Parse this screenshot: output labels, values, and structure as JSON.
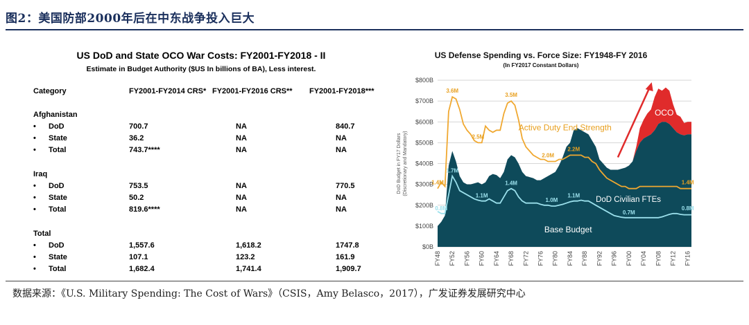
{
  "figure": {
    "title": "图2：美国防部2000年后在中东战争投入巨大",
    "source": "数据来源：《U.S. Military Spending: The Cost of Wars》（CSIS，Amy Belasco，2017），广发证券发展研究中心"
  },
  "table": {
    "title": "US DoD and State OCO War Costs: FY2001-FY2018 - II",
    "subtitle": "Estimate in Budget Authority ($US In billions of BA), Less interest.",
    "headers": [
      "Category",
      "FY2001-FY2014 CRS*",
      "FY2001-FY2016 CRS**",
      "FY2001-FY2018***"
    ],
    "bullet": "•",
    "sections": [
      {
        "name": "Afghanistan",
        "rows": [
          {
            "label": "DoD",
            "values": [
              "700.7",
              "NA",
              "840.7"
            ]
          },
          {
            "label": "State",
            "values": [
              "36.2",
              "NA",
              "NA"
            ]
          },
          {
            "label": "Total",
            "values": [
              "743.7****",
              "NA",
              "NA"
            ]
          }
        ]
      },
      {
        "name": "Iraq",
        "rows": [
          {
            "label": "DoD",
            "values": [
              "753.5",
              "NA",
              "770.5"
            ]
          },
          {
            "label": "State",
            "values": [
              "50.2",
              "NA",
              "NA"
            ]
          },
          {
            "label": "Total",
            "values": [
              "819.6****",
              "NA",
              "NA"
            ]
          }
        ]
      },
      {
        "name": "Total",
        "rows": [
          {
            "label": "DoD",
            "values": [
              "1,557.6",
              "1,618.2",
              "1747.8"
            ]
          },
          {
            "label": "State",
            "values": [
              "107.1",
              "123.2",
              "161.9"
            ]
          },
          {
            "label": "Total",
            "values": [
              "1,682.4",
              "1,741.4",
              "1,909.7"
            ]
          }
        ]
      }
    ]
  },
  "chart_data": {
    "type": "area",
    "title": "US Defense Spending vs. Force Size: FY1948-FY 2016",
    "subtitle": "(In FY2017 Constant Dollars)",
    "ylabel_line1": "DoD Budget in FY17 Dollars",
    "ylabel_line2": "(Discretionary and Mandatory)",
    "ylim": [
      0,
      800
    ],
    "yticks": [
      0,
      100,
      200,
      300,
      400,
      500,
      600,
      700,
      800
    ],
    "ytick_labels": [
      "$0B",
      "$100B",
      "$200B",
      "$300B",
      "$400B",
      "$500B",
      "$600B",
      "$700B",
      "$800B"
    ],
    "xlim": [
      1948,
      2017
    ],
    "xticks": [
      1948,
      1952,
      1956,
      1960,
      1964,
      1968,
      1972,
      1976,
      1980,
      1984,
      1988,
      1992,
      1996,
      2000,
      2004,
      2008,
      2012,
      2016
    ],
    "xtick_labels": [
      "FY48",
      "FY52",
      "FY56",
      "FY60",
      "FY64",
      "FY68",
      "FY72",
      "FY76",
      "FY80",
      "FY84",
      "FY88",
      "FY92",
      "FY96",
      "FY00",
      "FY04",
      "FY08",
      "FY12",
      "FY16"
    ],
    "colors": {
      "base": "#0e4a5a",
      "oco": "#e02b2b",
      "active": "#f0a830",
      "civilian": "#9be0ec",
      "grid": "#c8c8c8",
      "annotation_text": "#e8a020",
      "active_label": "#e8a020",
      "arrow": "#e02b2b"
    },
    "series": [
      {
        "name": "Base Budget",
        "unit": "$B",
        "x": [
          1948,
          1949,
          1950,
          1951,
          1952,
          1953,
          1954,
          1955,
          1956,
          1957,
          1958,
          1959,
          1960,
          1961,
          1962,
          1963,
          1964,
          1965,
          1966,
          1967,
          1968,
          1969,
          1970,
          1971,
          1972,
          1973,
          1974,
          1975,
          1976,
          1977,
          1978,
          1979,
          1980,
          1981,
          1982,
          1983,
          1984,
          1985,
          1986,
          1987,
          1988,
          1989,
          1990,
          1991,
          1992,
          1993,
          1994,
          1995,
          1996,
          1997,
          1998,
          1999,
          2000,
          2001,
          2002,
          2003,
          2004,
          2005,
          2006,
          2007,
          2008,
          2009,
          2010,
          2011,
          2012,
          2013,
          2014,
          2015,
          2016,
          2017
        ],
        "values": [
          100,
          120,
          150,
          390,
          460,
          410,
          340,
          310,
          300,
          300,
          305,
          310,
          300,
          310,
          340,
          350,
          345,
          330,
          360,
          420,
          440,
          430,
          400,
          360,
          340,
          335,
          330,
          320,
          320,
          330,
          340,
          350,
          360,
          390,
          430,
          480,
          500,
          560,
          570,
          560,
          550,
          540,
          510,
          480,
          420,
          400,
          380,
          370,
          370,
          370,
          375,
          380,
          390,
          410,
          460,
          500,
          520,
          530,
          540,
          560,
          590,
          600,
          600,
          590,
          570,
          550,
          540,
          535,
          540,
          540
        ]
      },
      {
        "name": "OCO",
        "unit": "$B",
        "x": [
          2001,
          2002,
          2003,
          2004,
          2005,
          2006,
          2007,
          2008,
          2009,
          2010,
          2011,
          2012,
          2013,
          2014,
          2015,
          2016,
          2017
        ],
        "values": [
          0,
          20,
          70,
          90,
          110,
          120,
          160,
          170,
          150,
          165,
          160,
          115,
          85,
          85,
          60,
          60,
          60
        ]
      },
      {
        "name": "Active Duty End Strength",
        "unit": "M",
        "x": [
          1948,
          1949,
          1950,
          1951,
          1952,
          1953,
          1954,
          1955,
          1956,
          1957,
          1958,
          1959,
          1960,
          1961,
          1962,
          1963,
          1964,
          1965,
          1966,
          1967,
          1968,
          1969,
          1970,
          1971,
          1972,
          1973,
          1974,
          1975,
          1976,
          1977,
          1978,
          1979,
          1980,
          1981,
          1982,
          1983,
          1984,
          1985,
          1986,
          1987,
          1988,
          1989,
          1990,
          1991,
          1992,
          1993,
          1994,
          1995,
          1996,
          1997,
          1998,
          1999,
          2000,
          2001,
          2002,
          2003,
          2004,
          2005,
          2006,
          2007,
          2008,
          2009,
          2010,
          2011,
          2012,
          2013,
          2014,
          2015,
          2016,
          2017
        ],
        "values": [
          1.4,
          1.55,
          1.45,
          3.25,
          3.6,
          3.55,
          3.3,
          2.95,
          2.8,
          2.7,
          2.55,
          2.5,
          2.5,
          2.9,
          2.8,
          2.75,
          2.8,
          2.8,
          3.2,
          3.45,
          3.5,
          3.4,
          3.05,
          2.6,
          2.4,
          2.3,
          2.2,
          2.15,
          2.1,
          2.1,
          2.05,
          2.05,
          2.05,
          2.1,
          2.1,
          2.15,
          2.2,
          2.2,
          2.2,
          2.2,
          2.15,
          2.15,
          2.05,
          2.0,
          1.85,
          1.75,
          1.65,
          1.6,
          1.55,
          1.5,
          1.45,
          1.45,
          1.4,
          1.4,
          1.4,
          1.45,
          1.45,
          1.45,
          1.45,
          1.45,
          1.45,
          1.45,
          1.45,
          1.45,
          1.45,
          1.45,
          1.4,
          1.4,
          1.4,
          1.4
        ]
      },
      {
        "name": "DoD Civilian FTEs",
        "unit": "M",
        "x": [
          1948,
          1949,
          1950,
          1951,
          1952,
          1953,
          1954,
          1955,
          1956,
          1957,
          1958,
          1959,
          1960,
          1961,
          1962,
          1963,
          1964,
          1965,
          1966,
          1967,
          1968,
          1969,
          1970,
          1971,
          1972,
          1973,
          1974,
          1975,
          1976,
          1977,
          1978,
          1979,
          1980,
          1981,
          1982,
          1983,
          1984,
          1985,
          1986,
          1987,
          1988,
          1989,
          1990,
          1991,
          1992,
          1993,
          1994,
          1995,
          1996,
          1997,
          1998,
          1999,
          2000,
          2001,
          2002,
          2003,
          2004,
          2005,
          2006,
          2007,
          2008,
          2009,
          2010,
          2011,
          2012,
          2013,
          2014,
          2015,
          2016,
          2017
        ],
        "values": [
          0.85,
          0.8,
          0.8,
          1.25,
          1.7,
          1.55,
          1.35,
          1.3,
          1.25,
          1.2,
          1.15,
          1.12,
          1.1,
          1.1,
          1.15,
          1.1,
          1.05,
          1.05,
          1.2,
          1.35,
          1.4,
          1.35,
          1.2,
          1.1,
          1.05,
          1.05,
          1.05,
          1.05,
          1.02,
          1.0,
          1.0,
          0.98,
          0.98,
          1.0,
          1.02,
          1.05,
          1.08,
          1.1,
          1.1,
          1.12,
          1.1,
          1.1,
          1.05,
          1.0,
          0.95,
          0.9,
          0.85,
          0.8,
          0.75,
          0.73,
          0.71,
          0.7,
          0.7,
          0.7,
          0.7,
          0.7,
          0.7,
          0.7,
          0.7,
          0.7,
          0.7,
          0.72,
          0.75,
          0.78,
          0.8,
          0.8,
          0.78,
          0.77,
          0.77,
          0.77
        ]
      }
    ],
    "annotations": [
      {
        "text": "3.6M",
        "x": 1952,
        "y": 3.6,
        "series": "Active Duty End Strength"
      },
      {
        "text": "3.5M",
        "x": 1968,
        "y": 3.5,
        "series": "Active Duty End Strength"
      },
      {
        "text": "2.5M",
        "x": 1959,
        "y": 2.5,
        "series": "Active Duty End Strength"
      },
      {
        "text": "2.0M",
        "x": 1978,
        "y": 2.05,
        "series": "Active Duty End Strength"
      },
      {
        "text": "2.2M",
        "x": 1985,
        "y": 2.2,
        "series": "Active Duty End Strength"
      },
      {
        "text": "1.4M",
        "x": 1948,
        "y": 1.4,
        "series": "Active Duty End Strength"
      },
      {
        "text": "1.4M",
        "x": 2016,
        "y": 1.4,
        "series": "Active Duty End Strength"
      },
      {
        "text": "1.7M",
        "x": 1952,
        "y": 1.7,
        "series": "DoD Civilian FTEs"
      },
      {
        "text": "1.4M",
        "x": 1968,
        "y": 1.4,
        "series": "DoD Civilian FTEs"
      },
      {
        "text": "1.1M",
        "x": 1960,
        "y": 1.1,
        "series": "DoD Civilian FTEs"
      },
      {
        "text": "1.1M",
        "x": 1985,
        "y": 1.1,
        "series": "DoD Civilian FTEs"
      },
      {
        "text": "1.0M",
        "x": 1979,
        "y": 1.0,
        "series": "DoD Civilian FTEs"
      },
      {
        "text": "0.7M",
        "x": 2000,
        "y": 0.7,
        "series": "DoD Civilian FTEs"
      },
      {
        "text": "0.8M",
        "x": 2016,
        "y": 0.8,
        "series": "DoD Civilian FTEs"
      },
      {
        "text": "0.8M",
        "x": 1949,
        "y": 0.8,
        "series": "DoD Civilian FTEs"
      }
    ],
    "labels": {
      "active": "Active Duty End Strength",
      "civilian": "DoD Civilian FTEs",
      "base": "Base Budget",
      "oco": "OCO"
    }
  }
}
